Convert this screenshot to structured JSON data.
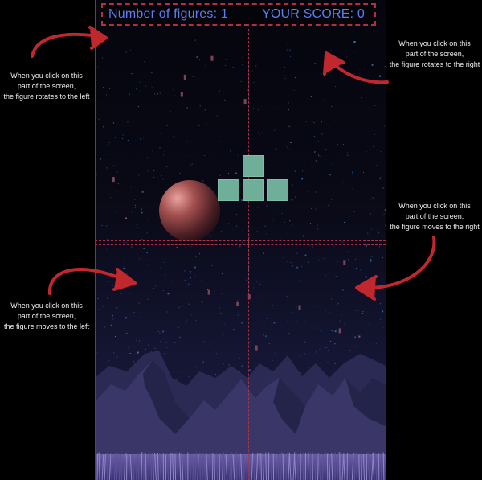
{
  "hud": {
    "figures_label": "Number of figures:",
    "figures_count": "1",
    "score_label": "YOUR SCORE:",
    "score_value": "0"
  },
  "annotations": {
    "rotate_left": [
      "When you click on this",
      "part of the screen,",
      "the figure rotates to the left"
    ],
    "rotate_right": [
      "When you click on this",
      "part of the screen,",
      "the figure rotates to the right"
    ],
    "move_right": [
      "When you click on this",
      "part of the screen,",
      "the figure moves to the right"
    ],
    "move_left": [
      "When you click on this",
      "part of the screen,",
      "the figure moves to the left"
    ]
  },
  "figure": {
    "shape": "T-tetromino",
    "color": "#6fae98"
  },
  "colors": {
    "hud_text": "#5b7ff0",
    "guide": "#b03040",
    "arrow": "#c0282e",
    "planet": "#7a3a3a",
    "mountains": "#2c2c57"
  }
}
